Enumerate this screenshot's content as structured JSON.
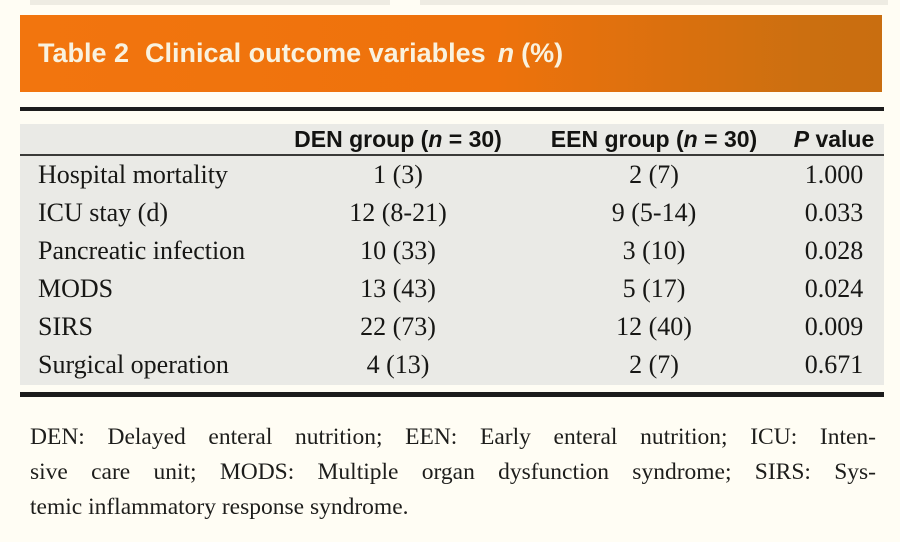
{
  "title_bar": {
    "label": "Table 2",
    "title": "Clinical outcome variables",
    "unit_var": "n",
    "unit_suffix": "(%)"
  },
  "table": {
    "header": {
      "col2_pre": "DEN group (",
      "col2_var": "n",
      "col2_post": " = 30)",
      "col3_pre": "EEN group (",
      "col3_var": "n",
      "col3_post": " = 30)",
      "col4_var": "P",
      "col4_post": " value"
    },
    "rows": [
      {
        "label": "Hospital mortality",
        "den": "1 (3)",
        "een": "2 (7)",
        "p": "1.000"
      },
      {
        "label": "ICU stay (d)",
        "den": "12 (8-21)",
        "een": "9 (5-14)",
        "p": "0.033"
      },
      {
        "label": "Pancreatic infection",
        "den": "10 (33)",
        "een": "3 (10)",
        "p": "0.028"
      },
      {
        "label": "MODS",
        "den": "13 (43)",
        "een": "5 (17)",
        "p": "0.024"
      },
      {
        "label": "SIRS",
        "den": "22 (73)",
        "een": "12 (40)",
        "p": "0.009"
      },
      {
        "label": "Surgical operation",
        "den": "4 (13)",
        "een": "2 (7)",
        "p": "0.671"
      }
    ]
  },
  "footnote": {
    "line1": "DEN: Delayed enteral nutrition; EEN: Early enteral nutrition; ICU: Inten-",
    "line2": "sive care unit; MODS: Multiple organ dysfunction syndrome; SIRS: Sys-",
    "line3": "temic inflammatory response syndrome."
  },
  "colors": {
    "accent_orange_left": "#f2750e",
    "accent_orange_right": "#c96e10",
    "title_text": "#f9f2df",
    "table_background": "#eaeae6",
    "rule_black": "#1c1c1c",
    "page_background": "#fffdf4"
  },
  "chart_data": {
    "type": "table",
    "title": "Table 2 Clinical outcome variables n (%)",
    "columns": [
      "",
      "DEN group (n = 30)",
      "EEN group (n = 30)",
      "P value"
    ],
    "rows": [
      [
        "Hospital mortality",
        "1 (3)",
        "2 (7)",
        "1.000"
      ],
      [
        "ICU stay (d)",
        "12 (8-21)",
        "9 (5-14)",
        "0.033"
      ],
      [
        "Pancreatic infection",
        "10 (33)",
        "3 (10)",
        "0.028"
      ],
      [
        "MODS",
        "13 (43)",
        "5 (17)",
        "0.024"
      ],
      [
        "SIRS",
        "22 (73)",
        "12 (40)",
        "0.009"
      ],
      [
        "Surgical operation",
        "4 (13)",
        "2 (7)",
        "0.671"
      ]
    ]
  }
}
